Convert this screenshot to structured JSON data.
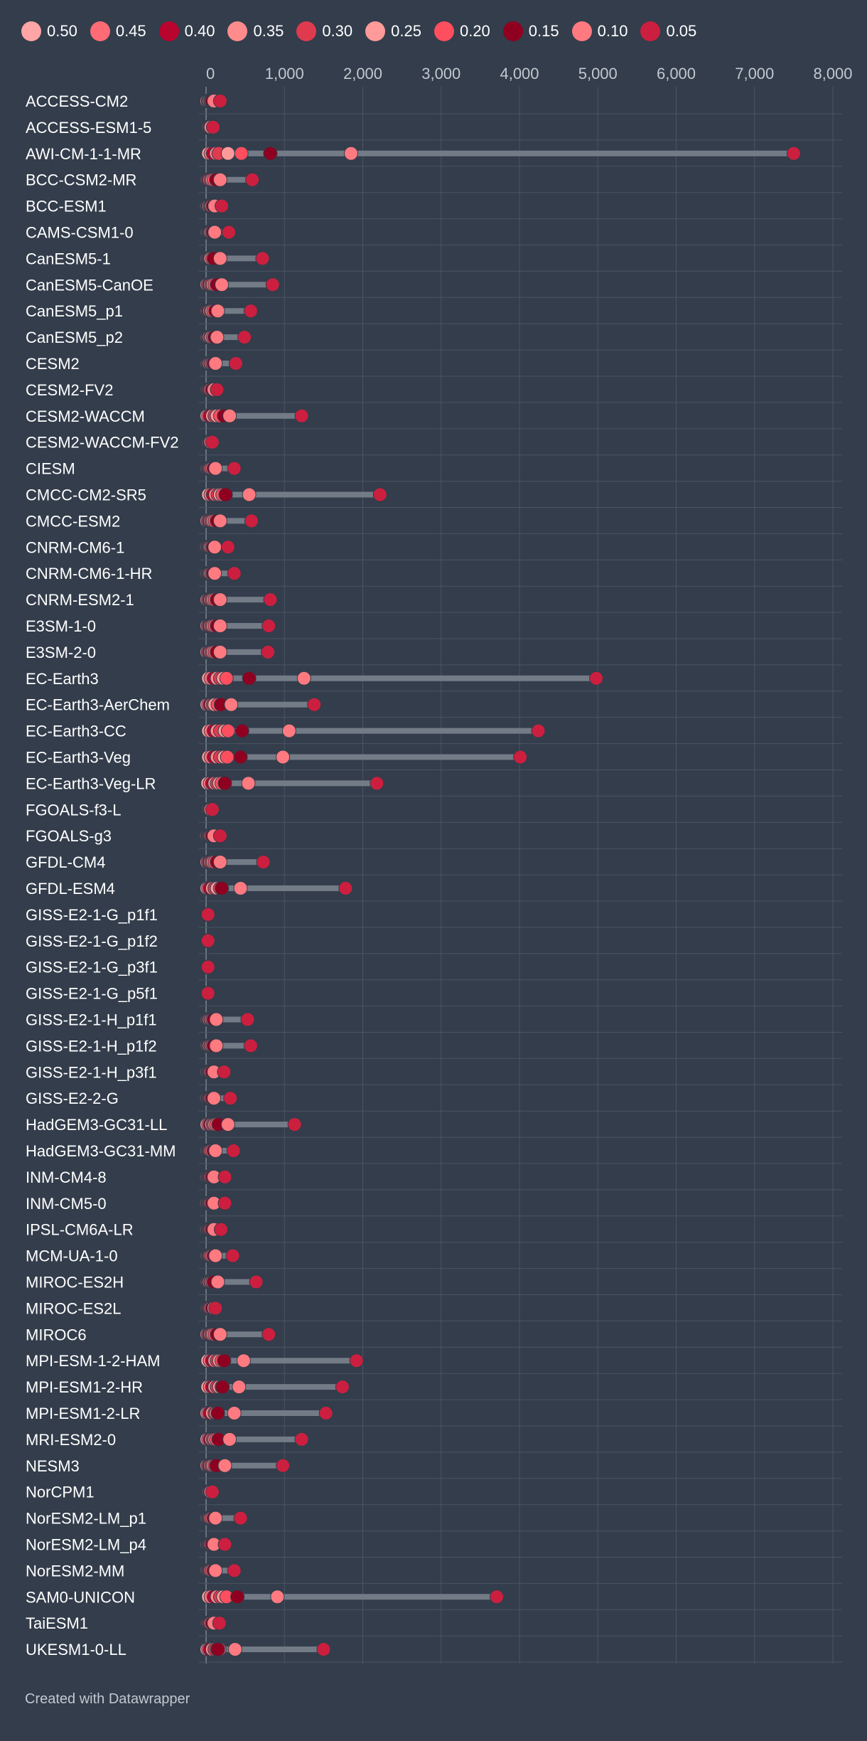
{
  "chart_data": {
    "type": "range-dot",
    "legend": [
      {
        "label": "0.50",
        "color": "#ffa5a5"
      },
      {
        "label": "0.45",
        "color": "#ff6b75"
      },
      {
        "label": "0.40",
        "color": "#b8042e"
      },
      {
        "label": "0.35",
        "color": "#ff8c8c"
      },
      {
        "label": "0.30",
        "color": "#e03a4f"
      },
      {
        "label": "0.25",
        "color": "#ff9a9a"
      },
      {
        "label": "0.20",
        "color": "#ff4e5e"
      },
      {
        "label": "0.15",
        "color": "#8f0020"
      },
      {
        "label": "0.10",
        "color": "#ff7a80"
      },
      {
        "label": "0.05",
        "color": "#cc1f3f"
      }
    ],
    "x_ticks": [
      "0",
      "1,000",
      "2,000",
      "3,000",
      "4,000",
      "5,000",
      "6,000",
      "7,000",
      "8,000"
    ],
    "xlim": [
      0,
      8000
    ],
    "grid": true,
    "models": [
      {
        "name": "ACCESS-CM2",
        "values": [
          10,
          25,
          30,
          40,
          55,
          60,
          70,
          80,
          100,
          180
        ]
      },
      {
        "name": "ACCESS-ESM1-5",
        "values": [
          5,
          10,
          15,
          20,
          25,
          30,
          40,
          50,
          60,
          90
        ]
      },
      {
        "name": "AWI-CM-1-1-MR",
        "values": [
          30,
          60,
          90,
          130,
          160,
          280,
          450,
          820,
          1850,
          7500
        ]
      },
      {
        "name": "BCC-CSM2-MR",
        "values": [
          10,
          20,
          30,
          45,
          60,
          80,
          100,
          130,
          180,
          590
        ]
      },
      {
        "name": "BCC-ESM1",
        "values": [
          5,
          15,
          25,
          35,
          50,
          60,
          70,
          90,
          110,
          200
        ]
      },
      {
        "name": "CAMS-CSM1-0",
        "values": [
          10,
          20,
          30,
          40,
          50,
          60,
          75,
          90,
          110,
          290
        ]
      },
      {
        "name": "CanESM5-1",
        "values": [
          10,
          20,
          30,
          40,
          50,
          60,
          80,
          100,
          180,
          720
        ]
      },
      {
        "name": "CanESM5-CanOE",
        "values": [
          10,
          25,
          40,
          55,
          70,
          90,
          110,
          140,
          200,
          850
        ]
      },
      {
        "name": "CanESM5_p1",
        "values": [
          10,
          20,
          30,
          45,
          60,
          75,
          95,
          120,
          150,
          570
        ]
      },
      {
        "name": "CanESM5_p2",
        "values": [
          10,
          20,
          30,
          40,
          55,
          70,
          90,
          110,
          140,
          490
        ]
      },
      {
        "name": "CESM2",
        "values": [
          10,
          20,
          30,
          40,
          55,
          70,
          85,
          100,
          120,
          380
        ]
      },
      {
        "name": "CESM2-FV2",
        "values": [
          5,
          10,
          20,
          30,
          40,
          50,
          60,
          80,
          100,
          140
        ]
      },
      {
        "name": "CESM2-WACCM",
        "values": [
          10,
          30,
          50,
          80,
          110,
          140,
          180,
          230,
          300,
          1220
        ]
      },
      {
        "name": "CESM2-WACCM-FV2",
        "values": [
          5,
          10,
          15,
          20,
          25,
          30,
          40,
          50,
          60,
          80
        ]
      },
      {
        "name": "CIESM",
        "values": [
          10,
          20,
          30,
          40,
          50,
          65,
          80,
          100,
          120,
          360
        ]
      },
      {
        "name": "CMCC-CM2-SR5",
        "values": [
          30,
          60,
          90,
          120,
          150,
          180,
          210,
          250,
          550,
          2220
        ]
      },
      {
        "name": "CMCC-ESM2",
        "values": [
          10,
          25,
          40,
          55,
          70,
          90,
          110,
          140,
          180,
          580
        ]
      },
      {
        "name": "CNRM-CM6-1",
        "values": [
          5,
          15,
          25,
          35,
          45,
          60,
          75,
          90,
          110,
          280
        ]
      },
      {
        "name": "CNRM-CM6-1-HR",
        "values": [
          5,
          15,
          25,
          35,
          45,
          60,
          75,
          90,
          110,
          360
        ]
      },
      {
        "name": "CNRM-ESM2-1",
        "values": [
          10,
          25,
          40,
          55,
          70,
          90,
          110,
          140,
          180,
          820
        ]
      },
      {
        "name": "E3SM-1-0",
        "values": [
          10,
          25,
          40,
          55,
          70,
          90,
          110,
          140,
          180,
          800
        ]
      },
      {
        "name": "E3SM-2-0",
        "values": [
          10,
          25,
          40,
          55,
          70,
          90,
          110,
          140,
          180,
          790
        ]
      },
      {
        "name": "EC-Earth3",
        "values": [
          30,
          60,
          100,
          140,
          180,
          220,
          260,
          550,
          1250,
          4980
        ]
      },
      {
        "name": "EC-Earth3-AerChem",
        "values": [
          10,
          30,
          50,
          70,
          90,
          110,
          150,
          190,
          320,
          1380
        ]
      },
      {
        "name": "EC-Earth3-CC",
        "values": [
          30,
          60,
          100,
          140,
          180,
          240,
          280,
          460,
          1060,
          4240
        ]
      },
      {
        "name": "EC-Earth3-Veg",
        "values": [
          30,
          60,
          100,
          140,
          180,
          230,
          270,
          440,
          980,
          4010
        ]
      },
      {
        "name": "EC-Earth3-Veg-LR",
        "values": [
          20,
          50,
          80,
          110,
          140,
          170,
          200,
          240,
          540,
          2180
        ]
      },
      {
        "name": "FGOALS-f3-L",
        "values": [
          5,
          10,
          15,
          20,
          25,
          30,
          40,
          50,
          60,
          80
        ]
      },
      {
        "name": "FGOALS-g3",
        "values": [
          5,
          15,
          25,
          35,
          45,
          55,
          65,
          80,
          100,
          180
        ]
      },
      {
        "name": "GFDL-CM4",
        "values": [
          10,
          25,
          40,
          55,
          70,
          90,
          110,
          140,
          180,
          730
        ]
      },
      {
        "name": "GFDL-ESM4",
        "values": [
          10,
          30,
          50,
          80,
          110,
          140,
          180,
          200,
          440,
          1780
        ]
      },
      {
        "name": "GISS-E2-1-G_p1f1",
        "values": [
          5,
          8,
          10,
          12,
          14,
          16,
          18,
          20,
          22,
          25
        ]
      },
      {
        "name": "GISS-E2-1-G_p1f2",
        "values": [
          5,
          8,
          10,
          12,
          14,
          16,
          18,
          20,
          22,
          25
        ]
      },
      {
        "name": "GISS-E2-1-G_p3f1",
        "values": [
          5,
          8,
          10,
          12,
          14,
          16,
          18,
          20,
          22,
          25
        ]
      },
      {
        "name": "GISS-E2-1-G_p5f1",
        "values": [
          5,
          8,
          10,
          12,
          14,
          16,
          18,
          20,
          22,
          25
        ]
      },
      {
        "name": "GISS-E2-1-H_p1f1",
        "values": [
          10,
          20,
          30,
          40,
          55,
          70,
          85,
          100,
          130,
          530
        ]
      },
      {
        "name": "GISS-E2-1-H_p1f2",
        "values": [
          10,
          20,
          30,
          40,
          55,
          70,
          85,
          100,
          130,
          570
        ]
      },
      {
        "name": "GISS-E2-1-H_p3f1",
        "values": [
          5,
          15,
          25,
          35,
          45,
          55,
          65,
          80,
          100,
          230
        ]
      },
      {
        "name": "GISS-E2-2-G",
        "values": [
          5,
          15,
          25,
          35,
          45,
          55,
          65,
          80,
          100,
          310
        ]
      },
      {
        "name": "HadGEM3-GC31-LL",
        "values": [
          10,
          30,
          50,
          70,
          90,
          110,
          130,
          160,
          280,
          1130
        ]
      },
      {
        "name": "HadGEM3-GC31-MM",
        "values": [
          10,
          20,
          30,
          40,
          50,
          65,
          80,
          100,
          120,
          350
        ]
      },
      {
        "name": "INM-CM4-8",
        "values": [
          5,
          15,
          25,
          35,
          45,
          55,
          65,
          80,
          100,
          240
        ]
      },
      {
        "name": "INM-CM5-0",
        "values": [
          5,
          15,
          25,
          35,
          45,
          55,
          65,
          80,
          100,
          240
        ]
      },
      {
        "name": "IPSL-CM6A-LR",
        "values": [
          5,
          15,
          25,
          35,
          45,
          55,
          65,
          80,
          100,
          190
        ]
      },
      {
        "name": "MCM-UA-1-0",
        "values": [
          10,
          20,
          30,
          40,
          50,
          65,
          80,
          100,
          120,
          340
        ]
      },
      {
        "name": "MIROC-ES2H",
        "values": [
          10,
          20,
          30,
          40,
          55,
          70,
          85,
          100,
          150,
          640
        ]
      },
      {
        "name": "MIROC-ES2L",
        "values": [
          5,
          10,
          20,
          30,
          40,
          50,
          60,
          80,
          100,
          120
        ]
      },
      {
        "name": "MIROC6",
        "values": [
          10,
          25,
          40,
          55,
          70,
          90,
          110,
          140,
          180,
          800
        ]
      },
      {
        "name": "MPI-ESM-1-2-HAM",
        "values": [
          20,
          50,
          80,
          110,
          140,
          170,
          200,
          230,
          480,
          1920
        ]
      },
      {
        "name": "MPI-ESM1-2-HR",
        "values": [
          20,
          50,
          80,
          110,
          140,
          170,
          200,
          210,
          420,
          1740
        ]
      },
      {
        "name": "MPI-ESM1-2-LR",
        "values": [
          10,
          30,
          50,
          80,
          110,
          130,
          150,
          150,
          360,
          1530
        ]
      },
      {
        "name": "MRI-ESM2-0",
        "values": [
          10,
          30,
          50,
          70,
          90,
          110,
          130,
          160,
          300,
          1220
        ]
      },
      {
        "name": "NESM3",
        "values": [
          10,
          25,
          40,
          55,
          70,
          90,
          110,
          130,
          240,
          980
        ]
      },
      {
        "name": "NorCPM1",
        "values": [
          5,
          10,
          15,
          20,
          25,
          30,
          40,
          50,
          60,
          80
        ]
      },
      {
        "name": "NorESM2-LM_p1",
        "values": [
          10,
          20,
          30,
          40,
          50,
          65,
          80,
          100,
          120,
          440
        ]
      },
      {
        "name": "NorESM2-LM_p4",
        "values": [
          5,
          15,
          25,
          35,
          45,
          55,
          65,
          80,
          100,
          240
        ]
      },
      {
        "name": "NorESM2-MM",
        "values": [
          10,
          20,
          30,
          40,
          50,
          65,
          80,
          100,
          120,
          360
        ]
      },
      {
        "name": "SAM0-UNICON",
        "values": [
          30,
          60,
          100,
          140,
          180,
          220,
          260,
          400,
          910,
          3710
        ]
      },
      {
        "name": "TaiESM1",
        "values": [
          5,
          10,
          20,
          30,
          40,
          50,
          60,
          80,
          100,
          170
        ]
      },
      {
        "name": "UKESM1-0-LL",
        "values": [
          10,
          30,
          50,
          80,
          110,
          140,
          170,
          150,
          370,
          1500
        ]
      }
    ]
  },
  "footer": {
    "text": "Created with Datawrapper"
  }
}
